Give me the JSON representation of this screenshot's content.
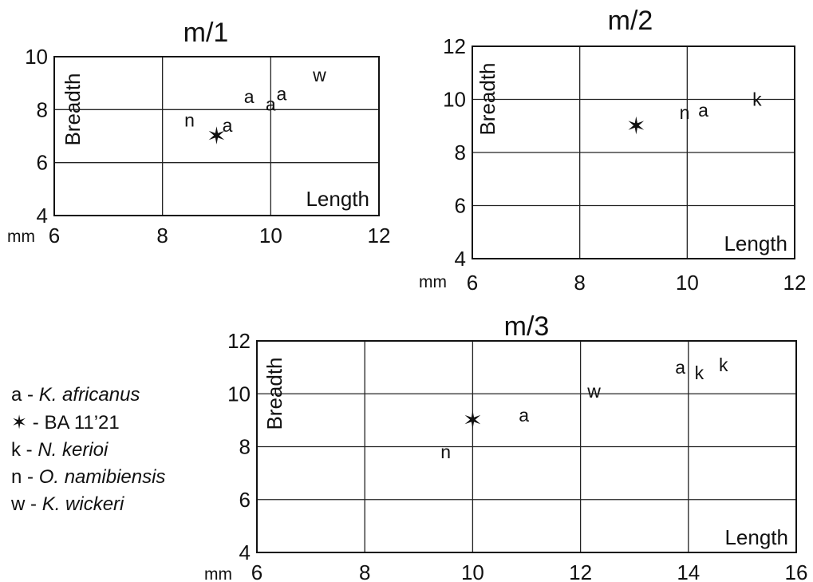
{
  "chart_data": [
    {
      "type": "scatter",
      "title": "m/1",
      "xlabel": "Length",
      "ylabel": "Breadth",
      "unit_label": "mm",
      "xlim": [
        6,
        12
      ],
      "ylim": [
        4,
        10
      ],
      "xticks": [
        "6",
        "8",
        "10",
        "12"
      ],
      "yticks": [
        "4",
        "6",
        "8",
        "10"
      ],
      "grid": true,
      "points": [
        {
          "x": 8.5,
          "y": 7.6,
          "symbol": "n"
        },
        {
          "x": 9.2,
          "y": 7.4,
          "symbol": "a"
        },
        {
          "x": 9.0,
          "y": 7.0,
          "symbol": "✶"
        },
        {
          "x": 9.6,
          "y": 8.5,
          "symbol": "a"
        },
        {
          "x": 10.0,
          "y": 8.2,
          "symbol": "a"
        },
        {
          "x": 10.2,
          "y": 8.6,
          "symbol": "a"
        },
        {
          "x": 10.9,
          "y": 9.3,
          "symbol": "w"
        }
      ]
    },
    {
      "type": "scatter",
      "title": "m/2",
      "xlabel": "Length",
      "ylabel": "Breadth",
      "unit_label": "mm",
      "xlim": [
        6,
        12
      ],
      "ylim": [
        4,
        12
      ],
      "xticks": [
        "6",
        "8",
        "10",
        "12"
      ],
      "yticks": [
        "4",
        "6",
        "8",
        "10",
        "12"
      ],
      "grid": true,
      "points": [
        {
          "x": 9.05,
          "y": 9.0,
          "symbol": "✶"
        },
        {
          "x": 9.95,
          "y": 9.5,
          "symbol": "n"
        },
        {
          "x": 10.3,
          "y": 9.6,
          "symbol": "a"
        },
        {
          "x": 11.3,
          "y": 10.0,
          "symbol": "k"
        }
      ]
    },
    {
      "type": "scatter",
      "title": "m/3",
      "xlabel": "Length",
      "ylabel": "Breadth",
      "unit_label": "mm",
      "xlim": [
        6,
        16
      ],
      "ylim": [
        4,
        12
      ],
      "xticks": [
        "6",
        "8",
        "10",
        "12",
        "14",
        "16"
      ],
      "yticks": [
        "4",
        "6",
        "8",
        "10",
        "12"
      ],
      "grid": true,
      "points": [
        {
          "x": 9.5,
          "y": 7.8,
          "symbol": "n"
        },
        {
          "x": 10.0,
          "y": 9.0,
          "symbol": "✶"
        },
        {
          "x": 10.95,
          "y": 9.2,
          "symbol": "a"
        },
        {
          "x": 12.25,
          "y": 10.1,
          "symbol": "w"
        },
        {
          "x": 13.85,
          "y": 11.0,
          "symbol": "a"
        },
        {
          "x": 14.2,
          "y": 10.8,
          "symbol": "k"
        },
        {
          "x": 14.65,
          "y": 11.1,
          "symbol": "k"
        }
      ]
    }
  ],
  "legend": [
    {
      "key": "a",
      "dash": "-",
      "label": "K. africanus"
    },
    {
      "key": "✶",
      "dash": "-",
      "label": "BA 11’21"
    },
    {
      "key": "k",
      "dash": "-",
      "label": "N. kerioi"
    },
    {
      "key": "n",
      "dash": "-",
      "label": "O. namibiensis"
    },
    {
      "key": "w",
      "dash": "-",
      "label": "K. wickeri"
    }
  ]
}
